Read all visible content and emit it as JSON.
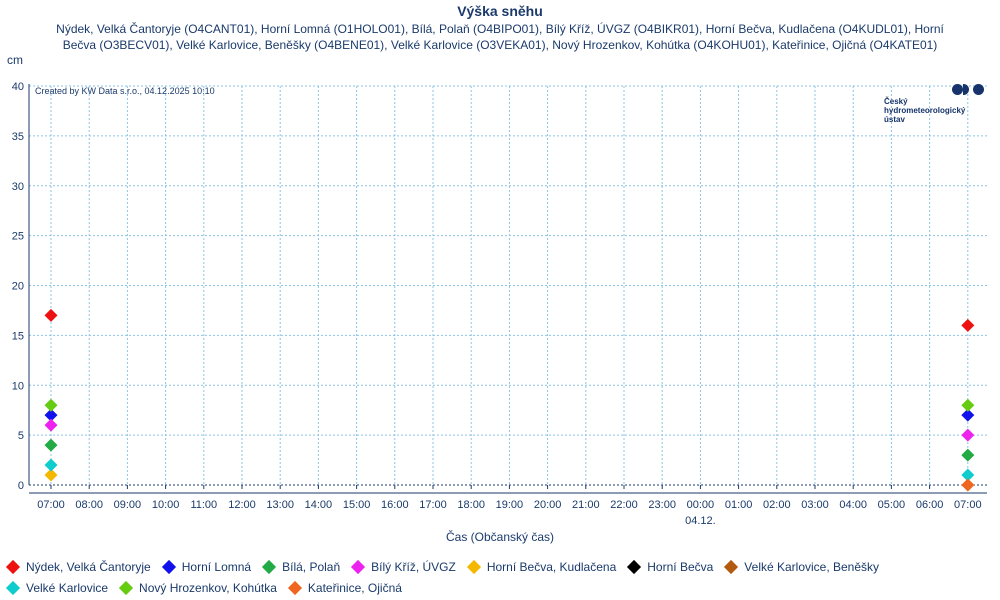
{
  "chart_data": {
    "type": "scatter",
    "title": "Výška sněhu",
    "subtitle": "Nýdek, Velká Čantoryje (O4CANT01), Horní Lomná (O1HOLO01), Bílá, Polaň (O4BIPO01), Bílý Kříž, ÚVGZ (O4BIKR01), Horní Bečva, Kudlačena (O4KUDL01), Horní Bečva (O3BECV01), Velké Karlovice, Beněšky (O4BENE01), Velké Karlovice (O3VEKA01), Nový Hrozenkov, Kohútka (O4KOHU01), Kateřinice, Ojičná (O4KATE01)",
    "ylabel": "cm",
    "xlabel": "Čas (Občanský čas)",
    "ylim": [
      0,
      40
    ],
    "yticks": [
      0,
      5,
      10,
      15,
      20,
      25,
      30,
      35,
      40
    ],
    "xticks": [
      "07:00",
      "08:00",
      "09:00",
      "10:00",
      "11:00",
      "12:00",
      "13:00",
      "14:00",
      "15:00",
      "16:00",
      "17:00",
      "18:00",
      "19:00",
      "20:00",
      "21:00",
      "22:00",
      "23:00",
      "00:00",
      "01:00",
      "02:00",
      "03:00",
      "04:00",
      "05:00",
      "06:00",
      "07:00"
    ],
    "date_label": "04.12.",
    "date_label_tick": "00:00",
    "created_text": "Created by KW Data s.r.o., 04.12.2025 10:10",
    "grid": true,
    "legend_position": "bottom",
    "series": [
      {
        "name": "Nýdek, Velká Čantoryje",
        "color": "#ee1111",
        "points": [
          [
            "07:00",
            17
          ],
          [
            "07:00 (04.12.)",
            16
          ]
        ]
      },
      {
        "name": "Horní Lomná",
        "color": "#1111ee",
        "points": [
          [
            "07:00",
            7
          ],
          [
            "07:00 (04.12.)",
            7
          ]
        ]
      },
      {
        "name": "Bílá, Polaň",
        "color": "#22aa44",
        "points": [
          [
            "07:00",
            4
          ],
          [
            "07:00 (04.12.)",
            3
          ]
        ]
      },
      {
        "name": "Bílý Kříž, ÚVGZ",
        "color": "#ee22ee",
        "points": [
          [
            "07:00",
            6
          ],
          [
            "07:00 (04.12.)",
            5
          ]
        ]
      },
      {
        "name": "Horní Bečva, Kudlačena",
        "color": "#f5b800",
        "points": [
          [
            "07:00",
            1
          ],
          [
            "07:00 (04.12.)",
            0
          ]
        ]
      },
      {
        "name": "Horní Bečva",
        "color": "#000000",
        "points": []
      },
      {
        "name": "Velké Karlovice, Beněšky",
        "color": "#b35a11",
        "points": []
      },
      {
        "name": "Velké Karlovice",
        "color": "#11cccc",
        "points": [
          [
            "07:00",
            2
          ],
          [
            "07:00 (04.12.)",
            1
          ]
        ]
      },
      {
        "name": "Nový Hrozenkov, Kohútka",
        "color": "#66cc11",
        "points": [
          [
            "07:00",
            8
          ],
          [
            "07:00 (04.12.)",
            8
          ]
        ]
      },
      {
        "name": "Kateřinice, Ojičná",
        "color": "#ee6622",
        "points": [
          [
            "07:00 (04.12.)",
            0
          ]
        ]
      }
    ]
  },
  "logo": {
    "text_lines": [
      "Český",
      "hydrometeorologický",
      "ústav"
    ]
  }
}
